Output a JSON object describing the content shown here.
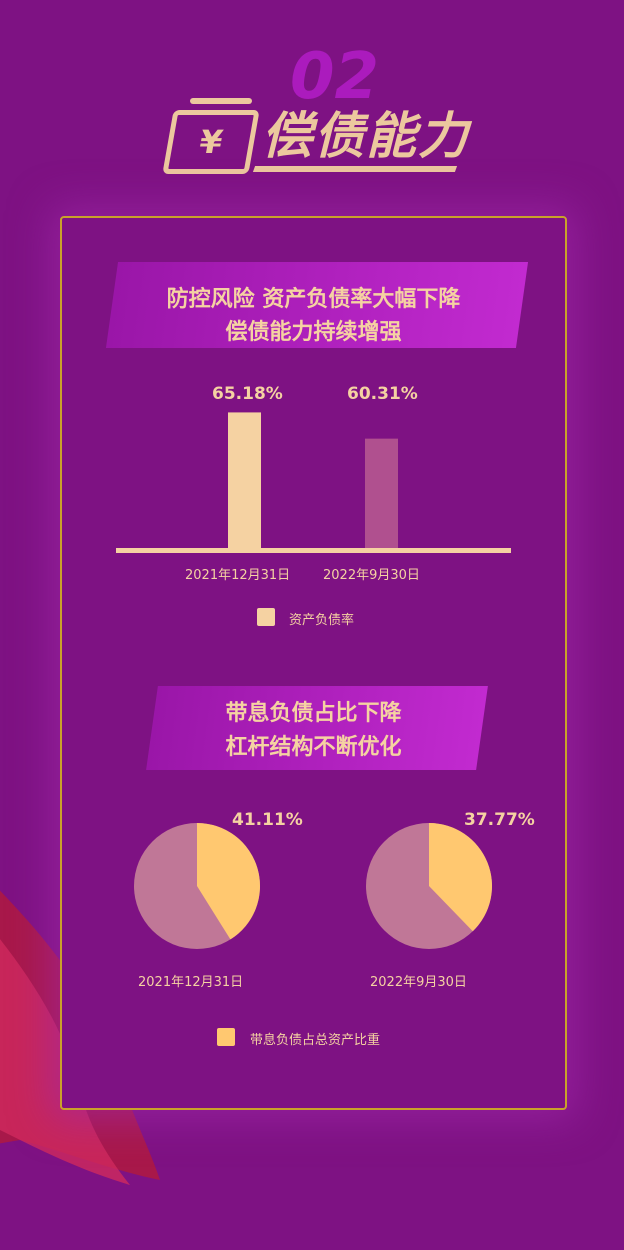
{
  "header": {
    "number": "02",
    "title": "偿债能力",
    "icon": "yen-wallet-icon"
  },
  "section1": {
    "title_line1": "防控风险  资产负债率大幅下降",
    "title_line2": "偿债能力持续增强"
  },
  "section2": {
    "title_line1": "带息负债占比下降",
    "title_line2": "杠杆结构不断优化"
  },
  "chart_data": [
    {
      "type": "bar",
      "categories": [
        "2021年12月31日",
        "2022年9月30日"
      ],
      "series": [
        {
          "name": "资产负债率",
          "values": [
            65.18,
            60.31
          ]
        }
      ],
      "data_labels": [
        "65.18%",
        "60.31%"
      ],
      "ylim": [
        40,
        66
      ],
      "grid": false,
      "legend": "bottom",
      "colors": [
        "#f5d2a2",
        "#b0508f"
      ]
    },
    {
      "type": "pie",
      "charts": [
        {
          "category": "2021年12月31日",
          "value": 41.11,
          "label": "41.11%"
        },
        {
          "category": "2022年9月30日",
          "value": 37.77,
          "label": "37.77%"
        }
      ],
      "series_name": "带息负债占总资产比重",
      "legend": "bottom",
      "colors": {
        "slice": "#ffc870",
        "rest": "#c07797"
      }
    }
  ]
}
